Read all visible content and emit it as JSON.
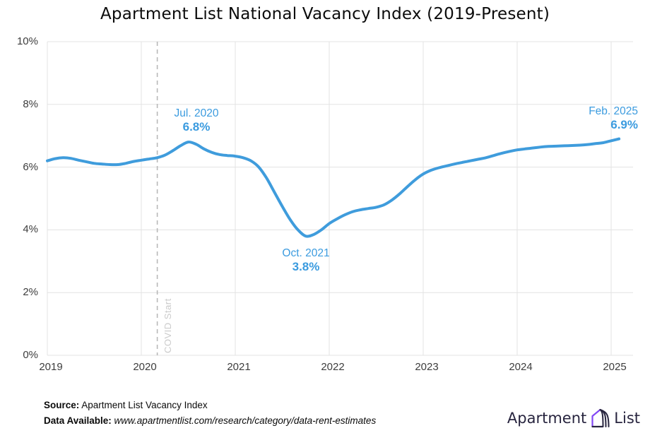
{
  "title": "Apartment List National Vacancy Index (2019-Present)",
  "colors": {
    "line": "#3f9cdc",
    "annotation_text": "#3b9bdf",
    "grid": "#e3e3e3",
    "axis_text": "#3d3d3d",
    "covid_line": "#b8b8b8",
    "covid_text": "#cbcbcb",
    "logo_navy": "#28253f",
    "logo_purple": "#8247f5"
  },
  "annotations": [
    {
      "label": "Jul. 2020",
      "value": "6.8%"
    },
    {
      "label": "Oct. 2021",
      "value": "3.8%"
    },
    {
      "label": "Feb. 2025",
      "value": "6.9%"
    }
  ],
  "covid_marker": {
    "label": "COVID Start",
    "x_year": 2020.17
  },
  "footer": {
    "source_label": "Source:",
    "source_value": " Apartment List Vacancy Index",
    "data_label": "Data Available:",
    "data_value": " www.apartmentlist.com/research/category/data-rent-estimates"
  },
  "logo": {
    "left_text": "Apartment",
    "right_text": "List"
  },
  "chart_data": {
    "type": "line",
    "title": "Apartment List National Vacancy Index (2019-Present)",
    "grid": true,
    "legend": false,
    "ylim": [
      0,
      10
    ],
    "y_ticks": [
      {
        "value": 0,
        "label": "0%"
      },
      {
        "value": 2,
        "label": "2%"
      },
      {
        "value": 4,
        "label": "4%"
      },
      {
        "value": 6,
        "label": "6%"
      },
      {
        "value": 8,
        "label": "8%"
      },
      {
        "value": 10,
        "label": "10%"
      }
    ],
    "x_ticks": [
      {
        "value": 2019,
        "label": "2019"
      },
      {
        "value": 2020,
        "label": "2020"
      },
      {
        "value": 2021,
        "label": "2021"
      },
      {
        "value": 2022,
        "label": "2022"
      },
      {
        "value": 2023,
        "label": "2023"
      },
      {
        "value": 2024,
        "label": "2024"
      },
      {
        "value": 2025,
        "label": "2025"
      }
    ],
    "series": [
      {
        "name": "National Vacancy Index",
        "unit": "percent",
        "frequency": "monthly",
        "start": "2019-01",
        "end": "2025-02",
        "values": [
          6.2,
          6.27,
          6.3,
          6.28,
          6.22,
          6.17,
          6.12,
          6.1,
          6.08,
          6.08,
          6.12,
          6.18,
          6.22,
          6.26,
          6.3,
          6.38,
          6.52,
          6.68,
          6.8,
          6.73,
          6.58,
          6.47,
          6.4,
          6.37,
          6.35,
          6.3,
          6.2,
          6.0,
          5.65,
          5.2,
          4.75,
          4.33,
          4.0,
          3.8,
          3.85,
          4.0,
          4.2,
          4.35,
          4.48,
          4.58,
          4.64,
          4.68,
          4.72,
          4.8,
          4.95,
          5.15,
          5.38,
          5.6,
          5.78,
          5.9,
          5.98,
          6.04,
          6.1,
          6.15,
          6.2,
          6.25,
          6.3,
          6.37,
          6.44,
          6.5,
          6.55,
          6.58,
          6.61,
          6.64,
          6.66,
          6.67,
          6.68,
          6.69,
          6.7,
          6.72,
          6.75,
          6.78,
          6.84,
          6.9
        ]
      }
    ],
    "key_points": [
      {
        "date": "Jul. 2020",
        "value": 6.8
      },
      {
        "date": "Oct. 2021",
        "value": 3.8
      },
      {
        "date": "Feb. 2025",
        "value": 6.9
      }
    ]
  }
}
